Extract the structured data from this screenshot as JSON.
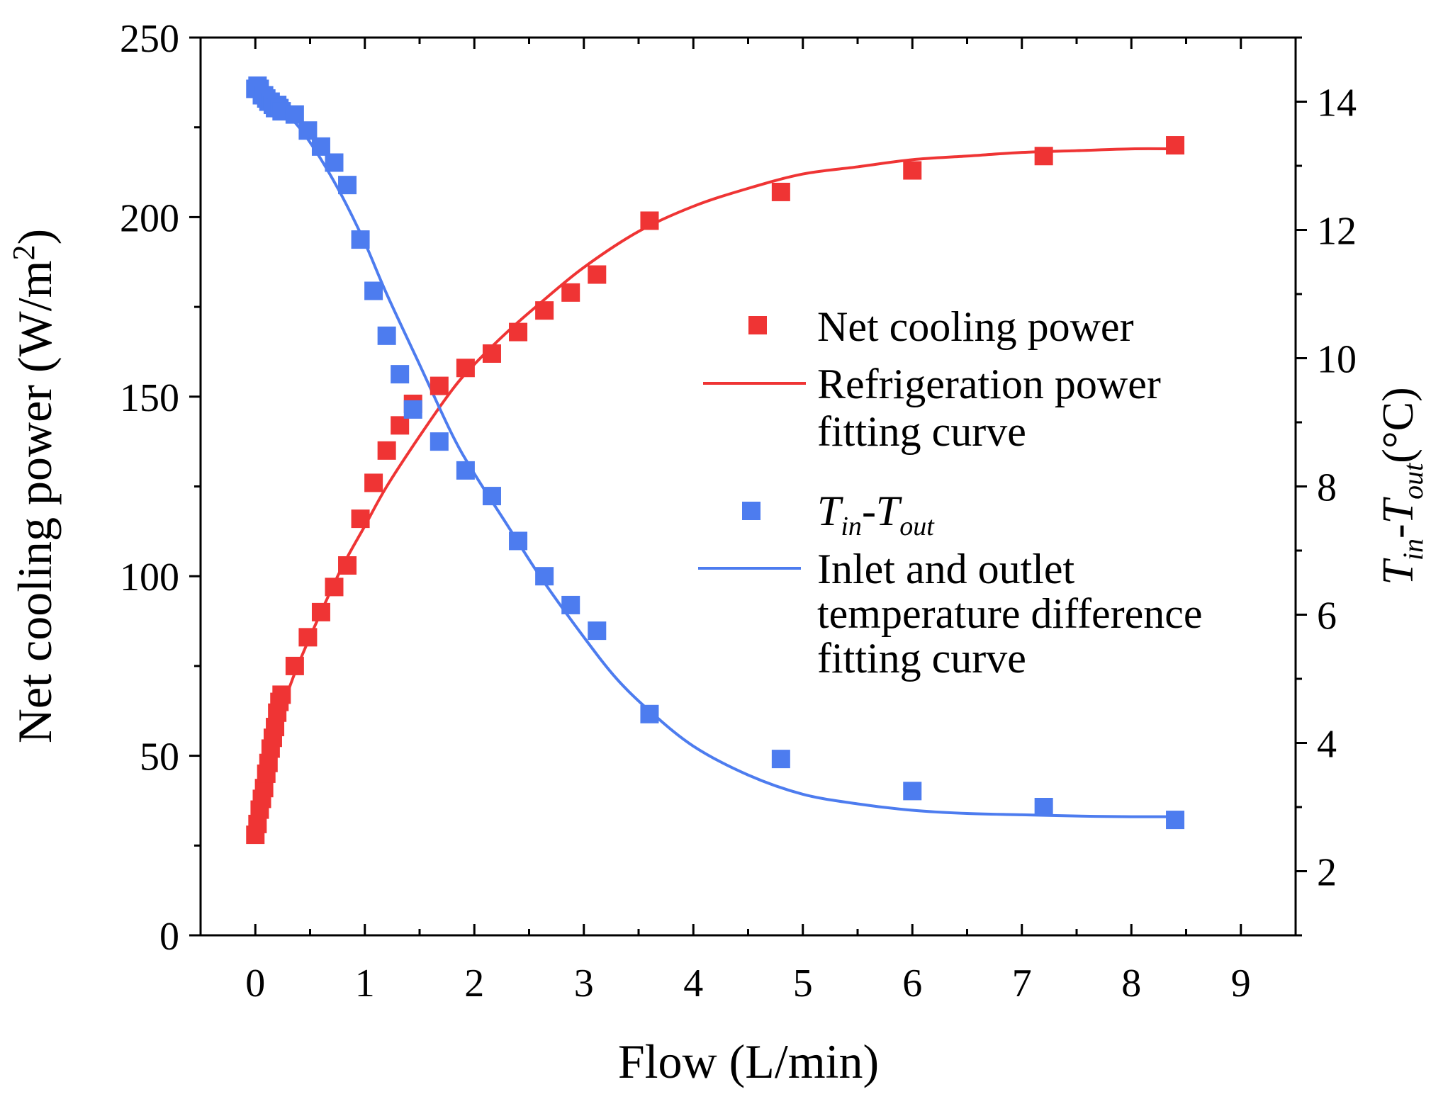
{
  "chart_data": {
    "type": "scatter",
    "xlabel": "Flow (L/min)",
    "ylabel": "Net cooling power (W/m²)",
    "ylabel_parts": {
      "main": "Net cooling power (W/m",
      "sup": "2",
      "close": ")"
    },
    "y2label_parts": {
      "t1": "T",
      "sub1": "in",
      "dash": "-",
      "t2": "T",
      "sub2": "out",
      "unit": "(°C)"
    },
    "xlim": [
      -0.5,
      9.5
    ],
    "ylim": [
      0,
      250
    ],
    "y2lim": [
      1,
      15
    ],
    "x_ticks": [
      0,
      1,
      2,
      3,
      4,
      5,
      6,
      7,
      8,
      9
    ],
    "x_tick_labels": [
      "0",
      "1",
      "2",
      "3",
      "4",
      "5",
      "6",
      "7",
      "8",
      "9"
    ],
    "y_ticks": [
      0,
      50,
      100,
      150,
      200,
      250
    ],
    "y_tick_labels": [
      "0",
      "50",
      "100",
      "150",
      "200",
      "250"
    ],
    "y2_ticks": [
      2,
      4,
      6,
      8,
      10,
      12,
      14
    ],
    "y2_tick_labels": [
      "2",
      "4",
      "6",
      "8",
      "10",
      "12",
      "14"
    ],
    "colors": {
      "power": "#ef3434",
      "temp": "#4d7cef"
    },
    "series": [
      {
        "name": "Net cooling power",
        "kind": "markers",
        "axis": "left",
        "x": [
          0.0,
          0.02,
          0.04,
          0.06,
          0.08,
          0.1,
          0.12,
          0.14,
          0.16,
          0.18,
          0.2,
          0.22,
          0.24,
          0.36,
          0.48,
          0.6,
          0.72,
          0.84,
          0.96,
          1.08,
          1.2,
          1.32,
          1.44,
          1.68,
          1.92,
          2.16,
          2.4,
          2.64,
          2.88,
          3.12,
          3.6,
          4.8,
          6.0,
          7.2,
          8.4
        ],
        "values": [
          28,
          31,
          35,
          38,
          41,
          45,
          48,
          52,
          55,
          58,
          62,
          65,
          67,
          75,
          83,
          90,
          97,
          103,
          116,
          126,
          135,
          142,
          148,
          153,
          158,
          162,
          168,
          174,
          179,
          184,
          199,
          207,
          213,
          217,
          220
        ]
      },
      {
        "name": "Refrigeration power fitting curve",
        "legend_lines": [
          "Refrigeration power",
          "fitting curve"
        ],
        "kind": "line",
        "axis": "left",
        "x": [
          0,
          0.1,
          0.2,
          0.3,
          0.4,
          0.6,
          0.8,
          1.0,
          1.2,
          1.5,
          1.8,
          2.0,
          2.3,
          2.6,
          3.0,
          3.5,
          4.0,
          4.5,
          5.0,
          5.5,
          6.0,
          6.5,
          7.0,
          7.5,
          8.0,
          8.4
        ],
        "values": [
          30,
          46,
          58,
          68,
          76,
          90,
          103,
          114,
          125,
          139,
          152,
          159,
          168,
          176,
          186,
          196,
          203,
          208,
          212,
          214,
          216,
          217,
          218,
          218.5,
          219,
          219
        ]
      },
      {
        "name": "Tin-Tout",
        "kind": "markers",
        "axis": "right",
        "x": [
          0.0,
          0.02,
          0.04,
          0.06,
          0.08,
          0.1,
          0.12,
          0.14,
          0.16,
          0.18,
          0.2,
          0.22,
          0.24,
          0.36,
          0.48,
          0.6,
          0.72,
          0.84,
          0.96,
          1.08,
          1.2,
          1.32,
          1.44,
          1.68,
          1.92,
          2.16,
          2.4,
          2.64,
          2.88,
          3.12,
          3.6,
          4.8,
          6.0,
          7.2,
          8.4
        ],
        "values": [
          14.2,
          14.25,
          14.2,
          14.1,
          14.1,
          14.05,
          14.0,
          14.0,
          13.95,
          13.9,
          13.95,
          13.9,
          13.85,
          13.8,
          13.55,
          13.3,
          13.05,
          12.7,
          11.85,
          11.05,
          10.35,
          9.75,
          9.2,
          8.7,
          8.25,
          7.85,
          7.15,
          6.6,
          6.15,
          5.75,
          4.45,
          3.75,
          3.25,
          3.0,
          2.8
        ]
      },
      {
        "name": "Inlet and outlet temperature difference fitting curve",
        "legend_lines": [
          "Inlet and outlet",
          "temperature difference",
          "fitting curve"
        ],
        "kind": "line",
        "axis": "right",
        "x": [
          0,
          0.2,
          0.4,
          0.6,
          0.8,
          1.0,
          1.2,
          1.5,
          1.8,
          2.0,
          2.3,
          2.6,
          3.0,
          3.3,
          3.6,
          4.0,
          4.5,
          5.0,
          5.5,
          6.0,
          6.5,
          7.0,
          7.5,
          8.0,
          8.4
        ],
        "values": [
          14.15,
          13.95,
          13.6,
          13.1,
          12.5,
          11.8,
          11.0,
          9.9,
          8.8,
          8.2,
          7.4,
          6.6,
          5.65,
          5.0,
          4.5,
          3.95,
          3.5,
          3.2,
          3.05,
          2.95,
          2.9,
          2.88,
          2.86,
          2.85,
          2.85
        ]
      }
    ],
    "legend": {
      "position": "center-right",
      "items": [
        {
          "label": "Net cooling power"
        },
        {
          "label_lines": [
            "Refrigeration power",
            "fitting curve"
          ]
        },
        {
          "label_parts": {
            "t1": "T",
            "sub1": "in",
            "dash": "-",
            "t2": "T",
            "sub2": "out"
          }
        },
        {
          "label_lines": [
            "Inlet and outlet",
            "temperature difference",
            "fitting curve"
          ]
        }
      ]
    }
  }
}
